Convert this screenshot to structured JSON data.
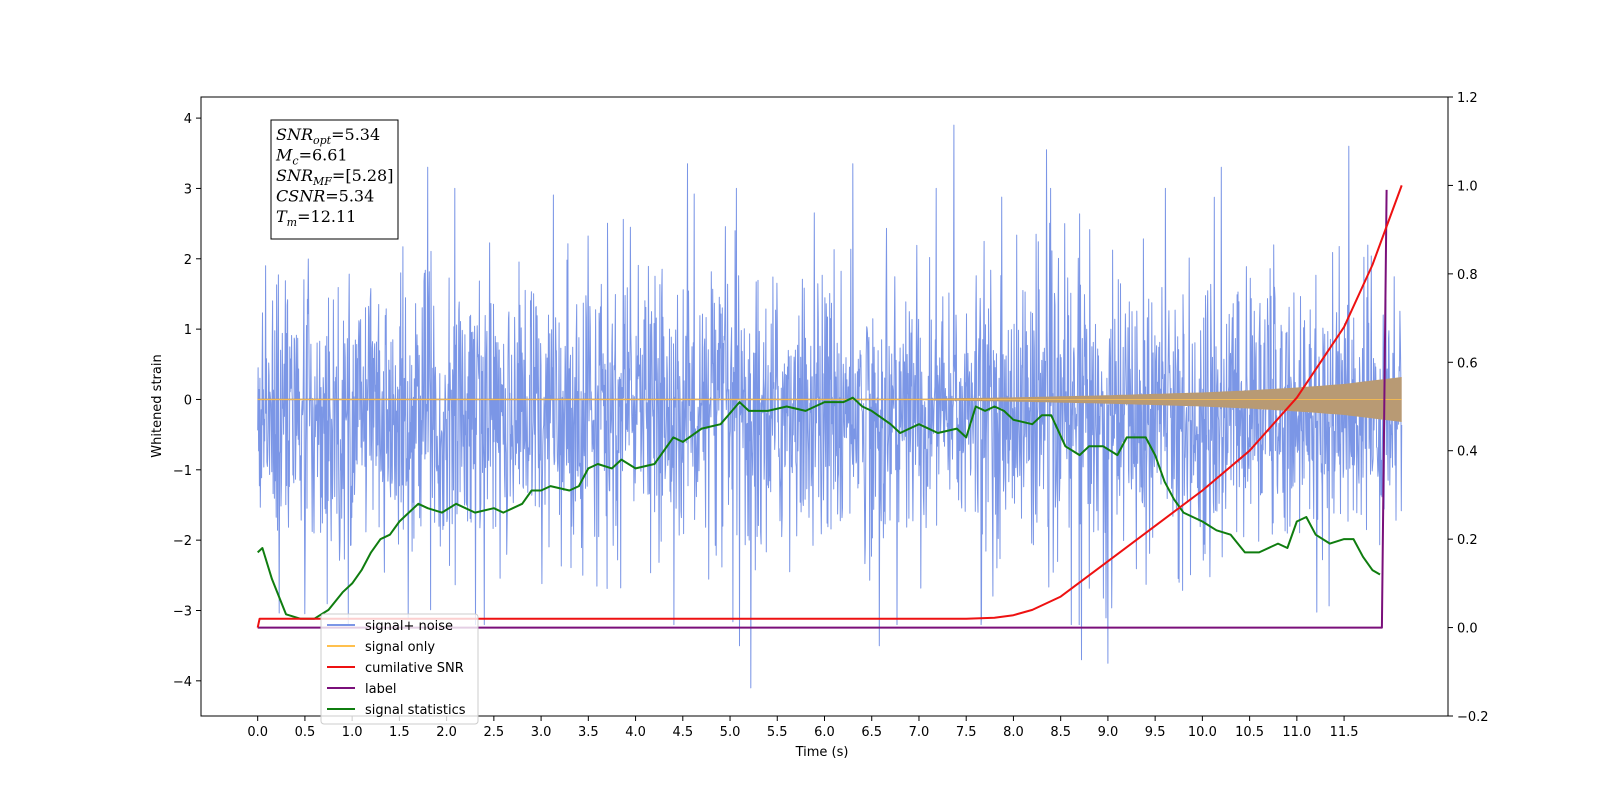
{
  "chart_data": {
    "type": "line",
    "xlabel": "Time (s)",
    "ylabel": "Whitened strain",
    "xlim": [
      -0.6,
      12.6
    ],
    "ylim": [
      -4.5,
      4.3
    ],
    "y2lim": [
      -0.2,
      1.2
    ],
    "x_ticks": [
      "0.0",
      "0.5",
      "1.0",
      "1.5",
      "2.0",
      "2.5",
      "3.0",
      "3.5",
      "4.0",
      "4.5",
      "5.0",
      "5.5",
      "6.0",
      "6.5",
      "7.0",
      "7.5",
      "8.0",
      "8.5",
      "9.0",
      "9.5",
      "10.0",
      "10.5",
      "11.0",
      "11.5"
    ],
    "y_ticks": [
      "4",
      "3",
      "2",
      "1",
      "0",
      "−1",
      "−2",
      "−3",
      "−4"
    ],
    "y2_ticks": [
      "1.2",
      "1.0",
      "0.8",
      "0.6",
      "0.4",
      "0.2",
      "0.0",
      "−0.2"
    ],
    "info_box": {
      "lines": [
        {
          "main": "SNR",
          "sub": "opt",
          "value": "=5.34"
        },
        {
          "main": "M",
          "sub": "c",
          "value": "=6.61"
        },
        {
          "main": "SNR",
          "sub": "MF",
          "value": "=[5.28]"
        },
        {
          "main": "CSNR",
          "sub": "",
          "value": "=5.34"
        },
        {
          "main": "T",
          "sub": "m",
          "value": "=12.11"
        }
      ]
    },
    "legend": {
      "position": "lower-left",
      "entries": [
        {
          "label": "signal+ noise",
          "color": "#7b96e6"
        },
        {
          "label": "signal only",
          "color": "#ffc04d"
        },
        {
          "label": "cumilative SNR",
          "color": "#ee1111"
        },
        {
          "label": "label",
          "color": "#7a0f7a"
        },
        {
          "label": "signal statistics",
          "color": "#0f7d0f"
        }
      ]
    },
    "series": [
      {
        "name": "signal+ noise",
        "axis": "left",
        "kind": "noise-band",
        "color": "#7b96e6",
        "x_range": [
          0.0,
          12.11
        ],
        "typical_range": [
          -1.7,
          1.3
        ],
        "extremes": [
          {
            "x": 7.37,
            "y": 3.9
          },
          {
            "x": 5.22,
            "y": -4.1
          },
          {
            "x": 9.0,
            "y": -3.75
          },
          {
            "x": 8.72,
            "y": -3.7
          },
          {
            "x": 11.55,
            "y": 3.6
          },
          {
            "x": 5.1,
            "y": -3.5
          },
          {
            "x": 6.58,
            "y": -3.5
          },
          {
            "x": 4.55,
            "y": 3.35
          },
          {
            "x": 6.3,
            "y": 3.35
          },
          {
            "x": 8.35,
            "y": 3.55
          },
          {
            "x": 1.8,
            "y": 3.3
          },
          {
            "x": 10.2,
            "y": 3.3
          }
        ]
      },
      {
        "name": "signal only",
        "axis": "left",
        "kind": "chirp",
        "color": "#ffc04d",
        "fill": "#b89a74",
        "x": [
          0.0,
          7.0,
          8.0,
          9.0,
          10.0,
          10.5,
          11.0,
          11.5,
          12.11
        ],
        "envelope": [
          0.0,
          0.01,
          0.03,
          0.06,
          0.1,
          0.13,
          0.17,
          0.22,
          0.32
        ]
      },
      {
        "name": "cumilative SNR",
        "axis": "right",
        "color": "#ee1111",
        "x": [
          0.0,
          0.02,
          5.0,
          7.5,
          7.8,
          8.0,
          8.2,
          8.5,
          9.0,
          9.5,
          10.0,
          10.5,
          11.0,
          11.5,
          11.8,
          12.11
        ],
        "values": [
          0.0,
          0.02,
          0.02,
          0.02,
          0.022,
          0.028,
          0.04,
          0.07,
          0.15,
          0.23,
          0.31,
          0.4,
          0.52,
          0.68,
          0.82,
          1.0
        ]
      },
      {
        "name": "label",
        "axis": "right",
        "color": "#7a0f7a",
        "x": [
          0.0,
          11.9,
          11.95
        ],
        "values": [
          0.0,
          0.0,
          0.99
        ]
      },
      {
        "name": "signal statistics",
        "axis": "right",
        "color": "#0f7d0f",
        "x": [
          0.0,
          0.05,
          0.15,
          0.3,
          0.45,
          0.6,
          0.75,
          0.9,
          1.0,
          1.1,
          1.2,
          1.3,
          1.4,
          1.5,
          1.6,
          1.7,
          1.8,
          1.95,
          2.1,
          2.3,
          2.5,
          2.6,
          2.7,
          2.8,
          2.9,
          3.0,
          3.1,
          3.3,
          3.4,
          3.5,
          3.6,
          3.75,
          3.85,
          4.0,
          4.2,
          4.4,
          4.5,
          4.7,
          4.9,
          5.1,
          5.2,
          5.4,
          5.6,
          5.8,
          6.0,
          6.2,
          6.3,
          6.4,
          6.5,
          6.7,
          6.8,
          7.0,
          7.2,
          7.4,
          7.5,
          7.6,
          7.7,
          7.8,
          7.9,
          8.0,
          8.2,
          8.3,
          8.4,
          8.55,
          8.7,
          8.8,
          8.95,
          9.1,
          9.2,
          9.4,
          9.5,
          9.6,
          9.7,
          9.8,
          10.0,
          10.15,
          10.3,
          10.45,
          10.6,
          10.8,
          10.9,
          11.0,
          11.1,
          11.2,
          11.35,
          11.5,
          11.6,
          11.7,
          11.8,
          11.88
        ],
        "values": [
          0.17,
          0.18,
          0.11,
          0.03,
          0.02,
          0.02,
          0.04,
          0.08,
          0.1,
          0.13,
          0.17,
          0.2,
          0.21,
          0.24,
          0.26,
          0.28,
          0.27,
          0.26,
          0.28,
          0.26,
          0.27,
          0.26,
          0.27,
          0.28,
          0.31,
          0.31,
          0.32,
          0.31,
          0.32,
          0.36,
          0.37,
          0.36,
          0.38,
          0.36,
          0.37,
          0.43,
          0.42,
          0.45,
          0.46,
          0.51,
          0.49,
          0.49,
          0.5,
          0.49,
          0.51,
          0.51,
          0.52,
          0.5,
          0.49,
          0.46,
          0.44,
          0.46,
          0.44,
          0.45,
          0.43,
          0.5,
          0.49,
          0.5,
          0.49,
          0.47,
          0.46,
          0.48,
          0.48,
          0.41,
          0.39,
          0.41,
          0.41,
          0.39,
          0.43,
          0.43,
          0.39,
          0.33,
          0.29,
          0.26,
          0.24,
          0.22,
          0.21,
          0.17,
          0.17,
          0.19,
          0.18,
          0.24,
          0.25,
          0.21,
          0.19,
          0.2,
          0.2,
          0.16,
          0.13,
          0.12
        ]
      }
    ]
  }
}
